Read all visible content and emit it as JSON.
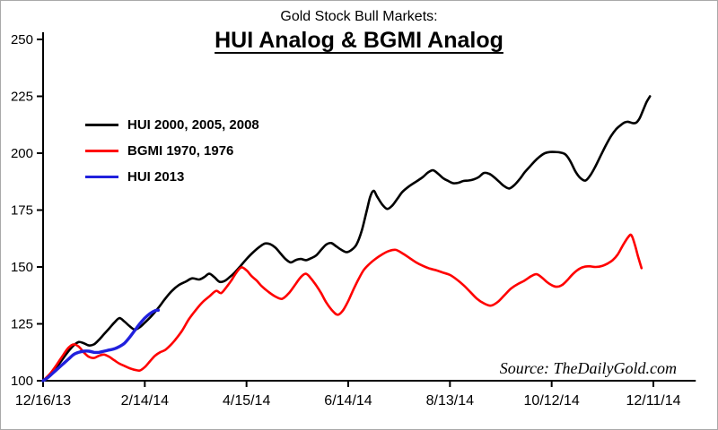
{
  "header": {
    "title_small": "Gold Stock Bull Markets:",
    "title_main": "HUI Analog & BGMI Analog"
  },
  "footer": {
    "source": "Source: TheDailyGold.com"
  },
  "chart_data": {
    "type": "line",
    "title": "Gold Stock Bull Markets: HUI Analog & BGMI Analog",
    "xlabel": "",
    "ylabel": "",
    "grid": false,
    "legend_position": "upper-left",
    "ylim": [
      100,
      250
    ],
    "xlim_days": [
      0,
      385
    ],
    "y_ticks": [
      100,
      125,
      150,
      175,
      200,
      225,
      250
    ],
    "x_tick_days": [
      0,
      60,
      120,
      180,
      240,
      300,
      360
    ],
    "x_tick_labels": [
      "12/16/13",
      "2/14/14",
      "4/15/14",
      "6/14/14",
      "8/13/14",
      "10/12/14",
      "12/11/14"
    ],
    "series": [
      {
        "name": "HUI 2000, 2005, 2008",
        "color": "#000000",
        "width": 2.6,
        "points": [
          [
            0,
            100
          ],
          [
            4,
            102.5
          ],
          [
            8,
            106
          ],
          [
            12,
            110
          ],
          [
            15,
            113
          ],
          [
            18,
            115.5
          ],
          [
            21,
            117
          ],
          [
            24,
            116.5
          ],
          [
            27,
            115.5
          ],
          [
            30,
            116
          ],
          [
            33,
            118
          ],
          [
            36,
            120.5
          ],
          [
            39,
            123
          ],
          [
            42,
            125.5
          ],
          [
            45,
            127.5
          ],
          [
            48,
            126
          ],
          [
            51,
            124
          ],
          [
            54,
            122.5
          ],
          [
            57,
            123.5
          ],
          [
            60,
            125.5
          ],
          [
            64,
            128.5
          ],
          [
            68,
            132
          ],
          [
            72,
            136
          ],
          [
            76,
            139.5
          ],
          [
            80,
            142
          ],
          [
            84,
            143.5
          ],
          [
            88,
            145
          ],
          [
            92,
            144.5
          ],
          [
            95,
            145.5
          ],
          [
            98,
            147
          ],
          [
            101,
            145.5
          ],
          [
            104,
            143.5
          ],
          [
            107,
            143.8
          ],
          [
            110,
            145.5
          ],
          [
            113,
            147.5
          ],
          [
            116,
            150
          ],
          [
            120,
            153.5
          ],
          [
            124,
            156.5
          ],
          [
            128,
            159
          ],
          [
            131,
            160.3
          ],
          [
            134,
            160
          ],
          [
            137,
            158.5
          ],
          [
            140,
            156
          ],
          [
            143,
            153.5
          ],
          [
            146,
            152
          ],
          [
            149,
            153
          ],
          [
            152,
            153.5
          ],
          [
            155,
            153
          ],
          [
            158,
            153.8
          ],
          [
            161,
            155
          ],
          [
            164,
            157.5
          ],
          [
            167,
            159.8
          ],
          [
            170,
            160.5
          ],
          [
            173,
            159
          ],
          [
            176,
            157.5
          ],
          [
            179,
            156.5
          ],
          [
            182,
            157.5
          ],
          [
            185,
            160
          ],
          [
            188,
            166
          ],
          [
            191,
            175
          ],
          [
            193,
            181
          ],
          [
            195,
            183.5
          ],
          [
            197,
            181
          ],
          [
            200,
            177.5
          ],
          [
            203,
            175.5
          ],
          [
            206,
            177
          ],
          [
            209,
            180
          ],
          [
            212,
            183
          ],
          [
            216,
            185.5
          ],
          [
            220,
            187.5
          ],
          [
            224,
            189.5
          ],
          [
            227,
            191.5
          ],
          [
            230,
            192.5
          ],
          [
            233,
            191
          ],
          [
            236,
            189
          ],
          [
            239,
            187.8
          ],
          [
            242,
            186.8
          ],
          [
            245,
            187
          ],
          [
            248,
            187.8
          ],
          [
            251,
            188
          ],
          [
            254,
            188.5
          ],
          [
            257,
            189.5
          ],
          [
            260,
            191.3
          ],
          [
            263,
            191
          ],
          [
            266,
            189.5
          ],
          [
            269,
            187.5
          ],
          [
            272,
            185.5
          ],
          [
            275,
            184.5
          ],
          [
            278,
            186
          ],
          [
            281,
            188.5
          ],
          [
            284,
            191.5
          ],
          [
            287,
            194
          ],
          [
            290,
            196.5
          ],
          [
            293,
            198.5
          ],
          [
            296,
            200
          ],
          [
            299,
            200.5
          ],
          [
            302,
            200.5
          ],
          [
            305,
            200.3
          ],
          [
            308,
            199.5
          ],
          [
            311,
            196.5
          ],
          [
            314,
            192
          ],
          [
            317,
            189
          ],
          [
            320,
            188
          ],
          [
            323,
            190.5
          ],
          [
            326,
            194.5
          ],
          [
            329,
            199
          ],
          [
            332,
            203.5
          ],
          [
            335,
            207.5
          ],
          [
            338,
            210.5
          ],
          [
            341,
            212.5
          ],
          [
            343,
            213.5
          ],
          [
            345,
            213.8
          ],
          [
            348,
            213.2
          ],
          [
            350,
            213.5
          ],
          [
            352,
            215.5
          ],
          [
            354,
            219
          ],
          [
            356,
            222.5
          ],
          [
            358,
            225
          ]
        ]
      },
      {
        "name": "BGMI 1970, 1976",
        "color": "#ff0000",
        "width": 2.6,
        "points": [
          [
            0,
            100
          ],
          [
            4,
            103
          ],
          [
            8,
            107
          ],
          [
            12,
            111.5
          ],
          [
            15,
            114.5
          ],
          [
            18,
            116
          ],
          [
            21,
            115
          ],
          [
            24,
            112.5
          ],
          [
            27,
            110.5
          ],
          [
            30,
            110
          ],
          [
            33,
            111
          ],
          [
            36,
            111.5
          ],
          [
            39,
            110.5
          ],
          [
            42,
            109
          ],
          [
            45,
            107.5
          ],
          [
            48,
            106.5
          ],
          [
            51,
            105.5
          ],
          [
            54,
            104.8
          ],
          [
            57,
            104.5
          ],
          [
            60,
            106
          ],
          [
            63,
            108.5
          ],
          [
            66,
            111
          ],
          [
            69,
            112.5
          ],
          [
            72,
            113.5
          ],
          [
            75,
            115.5
          ],
          [
            78,
            118
          ],
          [
            82,
            122
          ],
          [
            86,
            127
          ],
          [
            90,
            131
          ],
          [
            94,
            134.5
          ],
          [
            98,
            137
          ],
          [
            102,
            139.5
          ],
          [
            105,
            138.5
          ],
          [
            108,
            141
          ],
          [
            111,
            144
          ],
          [
            114,
            147.5
          ],
          [
            117,
            149.8
          ],
          [
            120,
            148.5
          ],
          [
            123,
            146
          ],
          [
            126,
            144
          ],
          [
            129,
            141.5
          ],
          [
            133,
            139
          ],
          [
            137,
            137
          ],
          [
            141,
            136
          ],
          [
            145,
            138.5
          ],
          [
            149,
            142.5
          ],
          [
            152,
            145.5
          ],
          [
            155,
            147
          ],
          [
            158,
            145
          ],
          [
            161,
            142
          ],
          [
            164,
            138.5
          ],
          [
            167,
            134.5
          ],
          [
            171,
            130.5
          ],
          [
            174,
            129
          ],
          [
            177,
            131
          ],
          [
            180,
            135
          ],
          [
            183,
            140
          ],
          [
            186,
            144.5
          ],
          [
            189,
            148.5
          ],
          [
            192,
            151
          ],
          [
            196,
            153.5
          ],
          [
            200,
            155.5
          ],
          [
            204,
            157
          ],
          [
            208,
            157.5
          ],
          [
            212,
            156
          ],
          [
            216,
            154
          ],
          [
            220,
            152
          ],
          [
            224,
            150.5
          ],
          [
            228,
            149.3
          ],
          [
            232,
            148.5
          ],
          [
            236,
            147.5
          ],
          [
            240,
            146.5
          ],
          [
            244,
            144.5
          ],
          [
            248,
            142
          ],
          [
            252,
            139
          ],
          [
            256,
            136
          ],
          [
            260,
            134
          ],
          [
            264,
            133
          ],
          [
            268,
            134.5
          ],
          [
            272,
            137.5
          ],
          [
            276,
            140.5
          ],
          [
            280,
            142.5
          ],
          [
            284,
            144
          ],
          [
            288,
            146
          ],
          [
            291,
            146.8
          ],
          [
            294,
            145.5
          ],
          [
            297,
            143.5
          ],
          [
            300,
            142
          ],
          [
            303,
            141.3
          ],
          [
            306,
            142
          ],
          [
            309,
            144
          ],
          [
            312,
            146.5
          ],
          [
            315,
            148.5
          ],
          [
            318,
            149.8
          ],
          [
            322,
            150.3
          ],
          [
            326,
            150
          ],
          [
            330,
            150.5
          ],
          [
            333,
            151.5
          ],
          [
            336,
            153
          ],
          [
            339,
            155.5
          ],
          [
            342,
            159.5
          ],
          [
            345,
            163
          ],
          [
            347,
            164
          ],
          [
            349,
            160
          ],
          [
            351,
            154.5
          ],
          [
            353,
            149.5
          ]
        ]
      },
      {
        "name": "HUI 2013",
        "color": "#2020dd",
        "width": 3.4,
        "points": [
          [
            0,
            100
          ],
          [
            3,
            101.5
          ],
          [
            6,
            103.5
          ],
          [
            9,
            105.5
          ],
          [
            12,
            107.5
          ],
          [
            15,
            109.5
          ],
          [
            18,
            111.5
          ],
          [
            21,
            112.5
          ],
          [
            24,
            113
          ],
          [
            27,
            113
          ],
          [
            30,
            112.5
          ],
          [
            33,
            112.5
          ],
          [
            36,
            113
          ],
          [
            39,
            113.5
          ],
          [
            42,
            114
          ],
          [
            45,
            115
          ],
          [
            48,
            116.5
          ],
          [
            51,
            119
          ],
          [
            54,
            122
          ],
          [
            57,
            125
          ],
          [
            60,
            127.5
          ],
          [
            63,
            129.5
          ],
          [
            66,
            130.8
          ],
          [
            68,
            131
          ]
        ]
      }
    ]
  }
}
